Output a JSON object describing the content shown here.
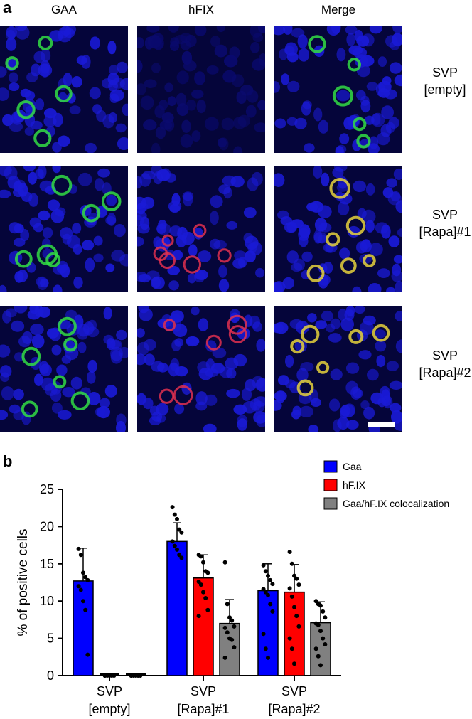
{
  "panel_a": {
    "letter": "a",
    "columns": [
      "GAA",
      "hFIX",
      "Merge"
    ],
    "rows": [
      {
        "line1": "SVP",
        "line2": "[empty]"
      },
      {
        "line1": "SVP",
        "line2": "[Rapa]#1"
      },
      {
        "line1": "SVP",
        "line2": "[Rapa]#2"
      }
    ]
  },
  "panel_b": {
    "letter": "b"
  },
  "chart_data": {
    "type": "bar",
    "ylabel": "% of positive cells",
    "ylim": [
      0,
      25
    ],
    "yticks": [
      0,
      5,
      10,
      15,
      20,
      25
    ],
    "categories": [
      {
        "line1": "SVP",
        "line2": "[empty]"
      },
      {
        "line1": "SVP",
        "line2": "[Rapa]#1"
      },
      {
        "line1": "SVP",
        "line2": "[Rapa]#2"
      }
    ],
    "legend_position": "top-right",
    "series": [
      {
        "name": "Gaa",
        "color": "#0000ff",
        "values": [
          12.7,
          18.0,
          11.4
        ],
        "sd": [
          4.4,
          2.5,
          3.6
        ],
        "points": [
          [
            17.0,
            16.2,
            13.8,
            13.2,
            12.8,
            12.0,
            11.5,
            10.0,
            8.8,
            2.8
          ],
          [
            22.6,
            21.6,
            21.0,
            19.6,
            19.2,
            18.0,
            17.4,
            16.9,
            16.2,
            15.8
          ],
          [
            14.8,
            14.0,
            13.4,
            12.8,
            12.3,
            11.6,
            11.2,
            10.8,
            9.6,
            8.6,
            5.6,
            3.6,
            2.4
          ]
        ]
      },
      {
        "name": "hF.IX",
        "color": "#ff0000",
        "values": [
          0.0,
          13.1,
          11.2
        ],
        "sd": [
          0.0,
          3.1,
          3.7
        ],
        "points": [
          [
            0.0,
            0.0,
            0.0,
            0.0,
            0.0,
            0.0
          ],
          [
            16.2,
            16.0,
            15.2,
            14.0,
            13.8,
            12.6,
            12.2,
            11.2,
            10.4,
            8.8,
            8.0
          ],
          [
            16.6,
            15.0,
            13.4,
            13.0,
            12.2,
            11.7,
            10.6,
            9.2,
            8.0,
            6.6,
            5.0,
            3.6,
            1.6
          ]
        ]
      },
      {
        "name": "Gaa/hF.IX colocalization",
        "color": "#808080",
        "values": [
          0.0,
          7.0,
          7.1
        ],
        "sd": [
          0.0,
          3.2,
          2.8
        ],
        "points": [
          [
            0.0,
            0.0,
            0.0,
            0.0,
            0.0,
            0.0
          ],
          [
            15.2,
            9.6,
            7.8,
            7.4,
            6.6,
            6.4,
            5.8,
            5.0,
            4.8,
            3.8,
            2.4
          ],
          [
            10.0,
            9.6,
            9.4,
            8.6,
            7.8,
            7.0,
            6.8,
            6.0,
            5.0,
            4.2,
            3.6,
            2.6,
            1.4
          ]
        ]
      }
    ]
  }
}
